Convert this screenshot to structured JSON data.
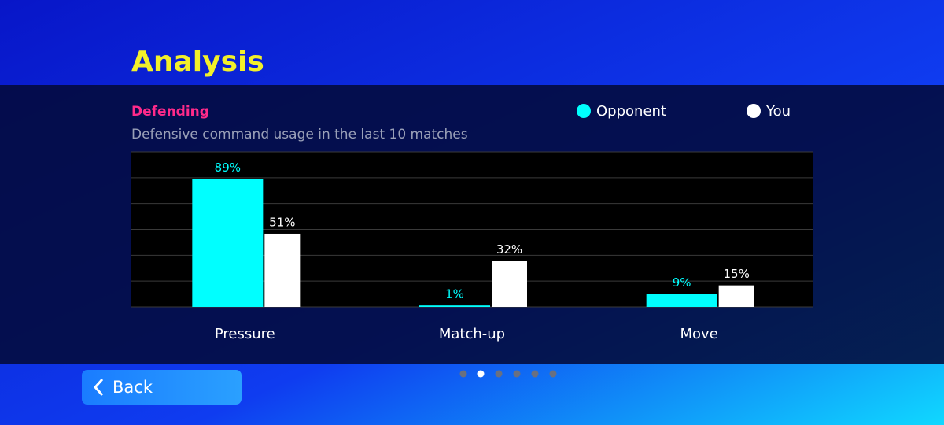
{
  "header": {
    "title": "Analysis"
  },
  "chart_data": {
    "type": "bar",
    "title": "Defending",
    "subtitle": "Defensive command usage in the last 10 matches",
    "categories": [
      "Pressure",
      "Match-up",
      "Move"
    ],
    "series": [
      {
        "name": "Opponent",
        "color": "#00ffff",
        "values": [
          89,
          1,
          9
        ],
        "value_labels": [
          "89%",
          "1%",
          "9%"
        ]
      },
      {
        "name": "You",
        "color": "#ffffff",
        "values": [
          51,
          32,
          15
        ],
        "value_labels": [
          "51%",
          "32%",
          "15%"
        ]
      }
    ],
    "ylim": [
      0,
      108
    ],
    "yticks": [
      0,
      18,
      36,
      54,
      72,
      90,
      108
    ],
    "grid": true
  },
  "nav": {
    "back": "Back"
  }
}
